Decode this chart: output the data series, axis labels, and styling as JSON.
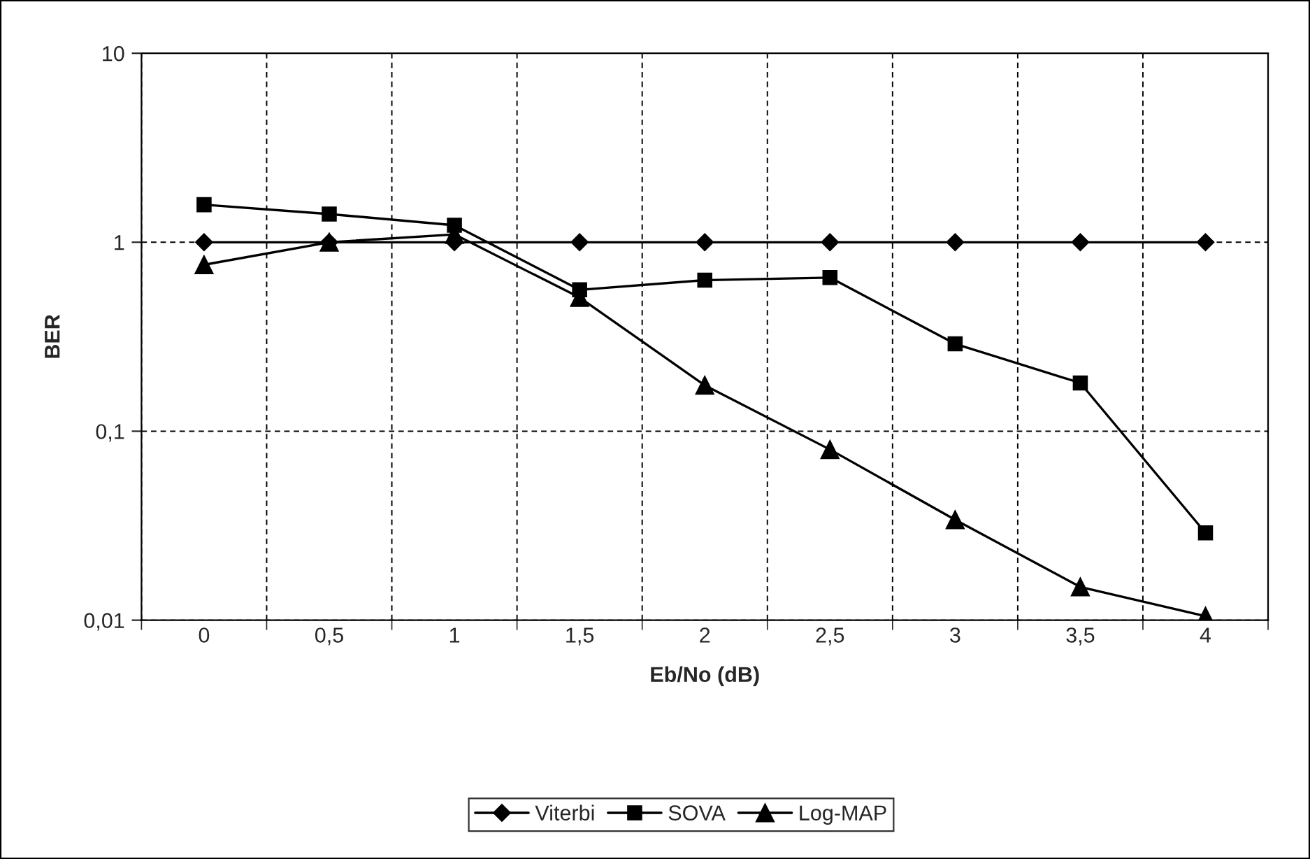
{
  "chart_data": {
    "type": "line",
    "xlabel": "Eb/No (dB)",
    "ylabel": "BER",
    "categories": [
      "0",
      "0,5",
      "1",
      "1,5",
      "2",
      "2,5",
      "3",
      "3,5",
      "4"
    ],
    "series": [
      {
        "name": "Viterbi",
        "color": "#000000",
        "marker": "diamond",
        "values": [
          1,
          1,
          1,
          1,
          1,
          1,
          1,
          1,
          1
        ]
      },
      {
        "name": "SOVA",
        "color": "#000000",
        "marker": "square",
        "values": [
          1.58,
          1.41,
          1.23,
          0.56,
          0.63,
          0.65,
          0.29,
          0.18,
          0.029
        ]
      },
      {
        "name": "Log-MAP",
        "color": "#000000",
        "marker": "triangle",
        "values": [
          0.76,
          1.0,
          1.1,
          0.51,
          0.175,
          0.08,
          0.034,
          0.015,
          0.0105
        ]
      }
    ],
    "log": "y",
    "ylim": [
      0.01,
      10
    ],
    "yticks": [
      {
        "value": 0.01,
        "label": "0,01"
      },
      {
        "value": 0.1,
        "label": "0,1"
      },
      1,
      10
    ],
    "grid": true,
    "legend": "bottom",
    "line_style": "solid"
  }
}
